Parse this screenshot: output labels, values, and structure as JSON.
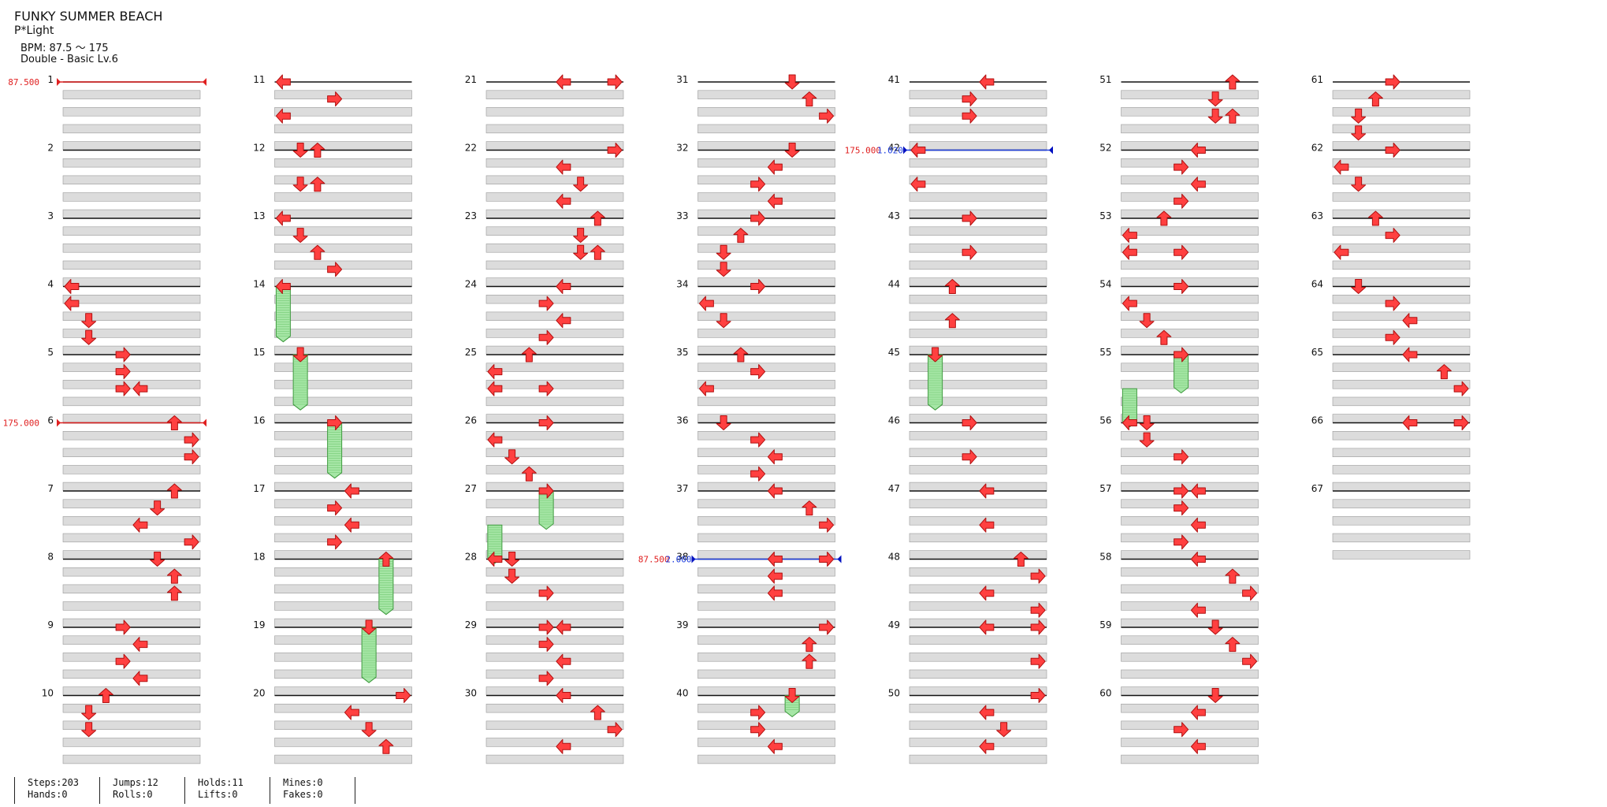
{
  "song": {
    "title": "FUNKY SUMMER BEACH",
    "artist": "P*Light",
    "bpm": "BPM: 87.5 ～ 175",
    "difficulty": "Double - Basic Lv.6"
  },
  "stats": [
    {
      "top": "Steps:203",
      "bottom": "Hands:0"
    },
    {
      "top": "Jumps:12",
      "bottom": "Rolls:0"
    },
    {
      "top": "Holds:11",
      "bottom": "Lifts:0"
    },
    {
      "top": "Mines:0",
      "bottom": "Fakes:0"
    }
  ],
  "measures": [
    {
      "n": 1,
      "notes": []
    },
    {
      "n": 2,
      "notes": []
    },
    {
      "n": 3,
      "notes": []
    },
    {
      "n": 4,
      "notes": [
        [
          0,
          0
        ],
        [
          1,
          0
        ],
        [
          2,
          1
        ],
        [
          3,
          1
        ]
      ]
    },
    {
      "n": 5,
      "notes": [
        [
          0,
          3
        ],
        [
          1,
          3
        ],
        [
          2,
          3
        ],
        [
          2,
          4
        ]
      ]
    },
    {
      "n": 6,
      "notes": [
        [
          0,
          6
        ],
        [
          1,
          7
        ],
        [
          2,
          7
        ]
      ]
    },
    {
      "n": 7,
      "notes": [
        [
          0,
          6
        ],
        [
          1,
          5
        ],
        [
          2,
          4
        ],
        [
          3,
          7
        ]
      ]
    },
    {
      "n": 8,
      "notes": [
        [
          0,
          5
        ],
        [
          1,
          6
        ],
        [
          2,
          6
        ]
      ]
    },
    {
      "n": 9,
      "notes": [
        [
          0,
          3
        ],
        [
          1,
          4
        ],
        [
          2,
          3
        ],
        [
          3,
          4
        ]
      ]
    },
    {
      "n": 10,
      "notes": [
        [
          0,
          2
        ],
        [
          1,
          1
        ],
        [
          2,
          1
        ]
      ]
    },
    {
      "n": 11,
      "notes": [
        [
          0,
          0
        ],
        [
          1,
          3
        ],
        [
          2,
          0
        ]
      ]
    },
    {
      "n": 12,
      "notes": [
        [
          0,
          1
        ],
        [
          0,
          2
        ],
        [
          2,
          1
        ],
        [
          2,
          2
        ]
      ]
    },
    {
      "n": 13,
      "notes": [
        [
          0,
          0
        ],
        [
          1,
          1
        ],
        [
          2,
          2
        ],
        [
          3,
          3
        ]
      ]
    },
    {
      "n": 14,
      "notes": [
        [
          0,
          0
        ]
      ]
    },
    {
      "n": 15,
      "notes": [
        [
          0,
          1
        ]
      ]
    },
    {
      "n": 16,
      "notes": [
        [
          0,
          3
        ]
      ]
    },
    {
      "n": 17,
      "notes": [
        [
          0,
          4
        ],
        [
          1,
          3
        ],
        [
          2,
          4
        ],
        [
          3,
          3
        ]
      ]
    },
    {
      "n": 18,
      "notes": [
        [
          0,
          6
        ]
      ]
    },
    {
      "n": 19,
      "notes": [
        [
          0,
          5
        ]
      ]
    },
    {
      "n": 20,
      "notes": [
        [
          0,
          7
        ],
        [
          1,
          4
        ],
        [
          2,
          5
        ],
        [
          3,
          6
        ]
      ]
    },
    {
      "n": 21,
      "notes": [
        [
          0,
          4
        ],
        [
          0,
          7
        ]
      ]
    },
    {
      "n": 22,
      "notes": [
        [
          0,
          7
        ],
        [
          1,
          4
        ],
        [
          2,
          5
        ],
        [
          3,
          4
        ]
      ]
    },
    {
      "n": 23,
      "notes": [
        [
          0,
          6
        ],
        [
          1,
          5
        ],
        [
          2,
          5
        ],
        [
          2,
          6
        ]
      ]
    },
    {
      "n": 24,
      "notes": [
        [
          0,
          4
        ],
        [
          1,
          3
        ],
        [
          2,
          4
        ],
        [
          3,
          3
        ]
      ]
    },
    {
      "n": 25,
      "notes": [
        [
          0,
          2
        ],
        [
          1,
          0
        ],
        [
          2,
          0
        ],
        [
          2,
          3
        ]
      ]
    },
    {
      "n": 26,
      "notes": [
        [
          0,
          3
        ],
        [
          1,
          0
        ],
        [
          2,
          1
        ],
        [
          3,
          2
        ]
      ]
    },
    {
      "n": 27,
      "notes": [
        [
          0,
          3
        ]
      ]
    },
    {
      "n": 28,
      "notes": [
        [
          0,
          0
        ],
        [
          0,
          1
        ],
        [
          1,
          1
        ],
        [
          2,
          3
        ]
      ]
    },
    {
      "n": 29,
      "notes": [
        [
          0,
          3
        ],
        [
          0,
          4
        ],
        [
          1,
          3
        ],
        [
          2,
          4
        ],
        [
          3,
          3
        ]
      ]
    },
    {
      "n": 30,
      "notes": [
        [
          0,
          4
        ],
        [
          1,
          6
        ],
        [
          2,
          7
        ],
        [
          3,
          4
        ]
      ]
    },
    {
      "n": 31,
      "notes": [
        [
          0,
          5
        ],
        [
          1,
          6
        ],
        [
          2,
          7
        ]
      ]
    },
    {
      "n": 32,
      "notes": [
        [
          0,
          5
        ],
        [
          1,
          4
        ],
        [
          2,
          3
        ],
        [
          3,
          4
        ]
      ]
    },
    {
      "n": 33,
      "notes": [
        [
          0,
          3
        ],
        [
          1,
          2
        ],
        [
          2,
          1
        ],
        [
          3,
          1
        ]
      ]
    },
    {
      "n": 34,
      "notes": [
        [
          0,
          3
        ],
        [
          1,
          0
        ],
        [
          2,
          1
        ]
      ]
    },
    {
      "n": 35,
      "notes": [
        [
          0,
          2
        ],
        [
          1,
          3
        ],
        [
          2,
          0
        ]
      ]
    },
    {
      "n": 36,
      "notes": [
        [
          0,
          1
        ],
        [
          1,
          3
        ],
        [
          2,
          4
        ],
        [
          3,
          3
        ]
      ]
    },
    {
      "n": 37,
      "notes": [
        [
          0,
          4
        ],
        [
          1,
          6
        ],
        [
          2,
          7
        ]
      ]
    },
    {
      "n": 38,
      "notes": [
        [
          0,
          4
        ],
        [
          0,
          7
        ],
        [
          1,
          4
        ],
        [
          2,
          4
        ]
      ]
    },
    {
      "n": 39,
      "notes": [
        [
          0,
          7
        ],
        [
          1,
          6
        ],
        [
          2,
          6
        ]
      ]
    },
    {
      "n": 40,
      "notes": [
        [
          0,
          5
        ],
        [
          1,
          3
        ],
        [
          2,
          3
        ],
        [
          3,
          4
        ]
      ]
    },
    {
      "n": 41,
      "notes": [
        [
          0,
          4
        ],
        [
          1,
          3
        ],
        [
          2,
          3
        ]
      ]
    },
    {
      "n": 42,
      "notes": [
        [
          0,
          0
        ],
        [
          2,
          0
        ]
      ]
    },
    {
      "n": 43,
      "notes": [
        [
          0,
          3
        ],
        [
          2,
          3
        ]
      ]
    },
    {
      "n": 44,
      "notes": [
        [
          0,
          2
        ],
        [
          2,
          2
        ]
      ]
    },
    {
      "n": 45,
      "notes": [
        [
          0,
          1
        ]
      ]
    },
    {
      "n": 46,
      "notes": [
        [
          0,
          3
        ],
        [
          2,
          3
        ]
      ]
    },
    {
      "n": 47,
      "notes": [
        [
          0,
          4
        ],
        [
          2,
          4
        ]
      ]
    },
    {
      "n": 48,
      "notes": [
        [
          0,
          6
        ],
        [
          1,
          7
        ],
        [
          2,
          4
        ],
        [
          3,
          7
        ]
      ]
    },
    {
      "n": 49,
      "notes": [
        [
          0,
          4
        ],
        [
          0,
          7
        ],
        [
          2,
          7
        ]
      ]
    },
    {
      "n": 50,
      "notes": [
        [
          0,
          7
        ],
        [
          1,
          4
        ],
        [
          2,
          5
        ],
        [
          3,
          4
        ]
      ]
    },
    {
      "n": 51,
      "notes": [
        [
          0,
          6
        ],
        [
          1,
          5
        ],
        [
          2,
          5
        ],
        [
          2,
          6
        ]
      ]
    },
    {
      "n": 52,
      "notes": [
        [
          0,
          4
        ],
        [
          1,
          3
        ],
        [
          2,
          4
        ],
        [
          3,
          3
        ]
      ]
    },
    {
      "n": 53,
      "notes": [
        [
          0,
          2
        ],
        [
          1,
          0
        ],
        [
          2,
          0
        ],
        [
          2,
          3
        ]
      ]
    },
    {
      "n": 54,
      "notes": [
        [
          0,
          3
        ],
        [
          1,
          0
        ],
        [
          2,
          1
        ],
        [
          3,
          2
        ]
      ]
    },
    {
      "n": 55,
      "notes": [
        [
          0,
          3
        ]
      ]
    },
    {
      "n": 56,
      "notes": [
        [
          0,
          0
        ],
        [
          0,
          1
        ],
        [
          1,
          1
        ],
        [
          2,
          3
        ]
      ]
    },
    {
      "n": 57,
      "notes": [
        [
          0,
          3
        ],
        [
          0,
          4
        ],
        [
          1,
          3
        ],
        [
          2,
          4
        ],
        [
          3,
          3
        ]
      ]
    },
    {
      "n": 58,
      "notes": [
        [
          0,
          4
        ],
        [
          1,
          6
        ],
        [
          2,
          7
        ],
        [
          3,
          4
        ]
      ]
    },
    {
      "n": 59,
      "notes": [
        [
          0,
          5
        ],
        [
          1,
          6
        ],
        [
          2,
          7
        ]
      ]
    },
    {
      "n": 60,
      "notes": [
        [
          0,
          5
        ],
        [
          1,
          4
        ],
        [
          2,
          3
        ],
        [
          3,
          4
        ]
      ]
    },
    {
      "n": 61,
      "notes": [
        [
          0,
          3
        ],
        [
          1,
          2
        ],
        [
          2,
          1
        ],
        [
          3,
          1
        ]
      ]
    },
    {
      "n": 62,
      "notes": [
        [
          0,
          3
        ],
        [
          1,
          0
        ],
        [
          2,
          1
        ]
      ]
    },
    {
      "n": 63,
      "notes": [
        [
          0,
          2
        ],
        [
          1,
          3
        ],
        [
          2,
          0
        ]
      ]
    },
    {
      "n": 64,
      "notes": [
        [
          0,
          1
        ],
        [
          1,
          3
        ],
        [
          2,
          4
        ],
        [
          3,
          3
        ]
      ]
    },
    {
      "n": 65,
      "notes": [
        [
          0,
          4
        ],
        [
          1,
          6
        ],
        [
          2,
          7
        ]
      ]
    },
    {
      "n": 66,
      "notes": [
        [
          0,
          4
        ],
        [
          0,
          7
        ]
      ]
    },
    {
      "n": 67,
      "notes": []
    }
  ],
  "holds": [
    {
      "measure": 14,
      "start_beat": 0,
      "end_beat": 3.25,
      "lane": 0
    },
    {
      "measure": 15,
      "start_beat": 0,
      "end_beat": 3.25,
      "lane": 1
    },
    {
      "measure": 16,
      "start_beat": 0,
      "end_beat": 3.25,
      "lane": 3
    },
    {
      "measure": 18,
      "start_beat": 0,
      "end_beat": 3.25,
      "lane": 6
    },
    {
      "measure": 19,
      "start_beat": 0,
      "end_beat": 3.25,
      "lane": 5
    },
    {
      "measure": 27,
      "start_beat": 0,
      "end_beat": 2.25,
      "lane": 3
    },
    {
      "measure": 27,
      "start_beat": 2,
      "end_beat": 4.25,
      "lane": 0
    },
    {
      "measure": 40,
      "start_beat": 0,
      "end_beat": 1.25,
      "lane": 5
    },
    {
      "measure": 45,
      "start_beat": 0,
      "end_beat": 3.25,
      "lane": 1
    },
    {
      "measure": 55,
      "start_beat": 0,
      "end_beat": 2.25,
      "lane": 3
    },
    {
      "measure": 55,
      "start_beat": 2,
      "end_beat": 4.25,
      "lane": 0
    }
  ],
  "bpm_changes": [
    {
      "measure": 1,
      "label": "87.500",
      "type": "bpm"
    },
    {
      "measure": 6,
      "label": "175.000",
      "type": "bpm"
    },
    {
      "measure": 38,
      "label": "87.500",
      "label2": "2.000",
      "type": "stop"
    },
    {
      "measure": 42,
      "label": "175.000",
      "label2": "1.020",
      "type": "stop"
    }
  ],
  "colors": {
    "arrow": "#ff4040",
    "arrow_outline": "#b01010",
    "hold": "#a6e6a6",
    "hold_outline": "#3c9a3c",
    "band": "#dcdcdc",
    "bpm_line": "#e02020",
    "stop_line": "#2040e0"
  }
}
